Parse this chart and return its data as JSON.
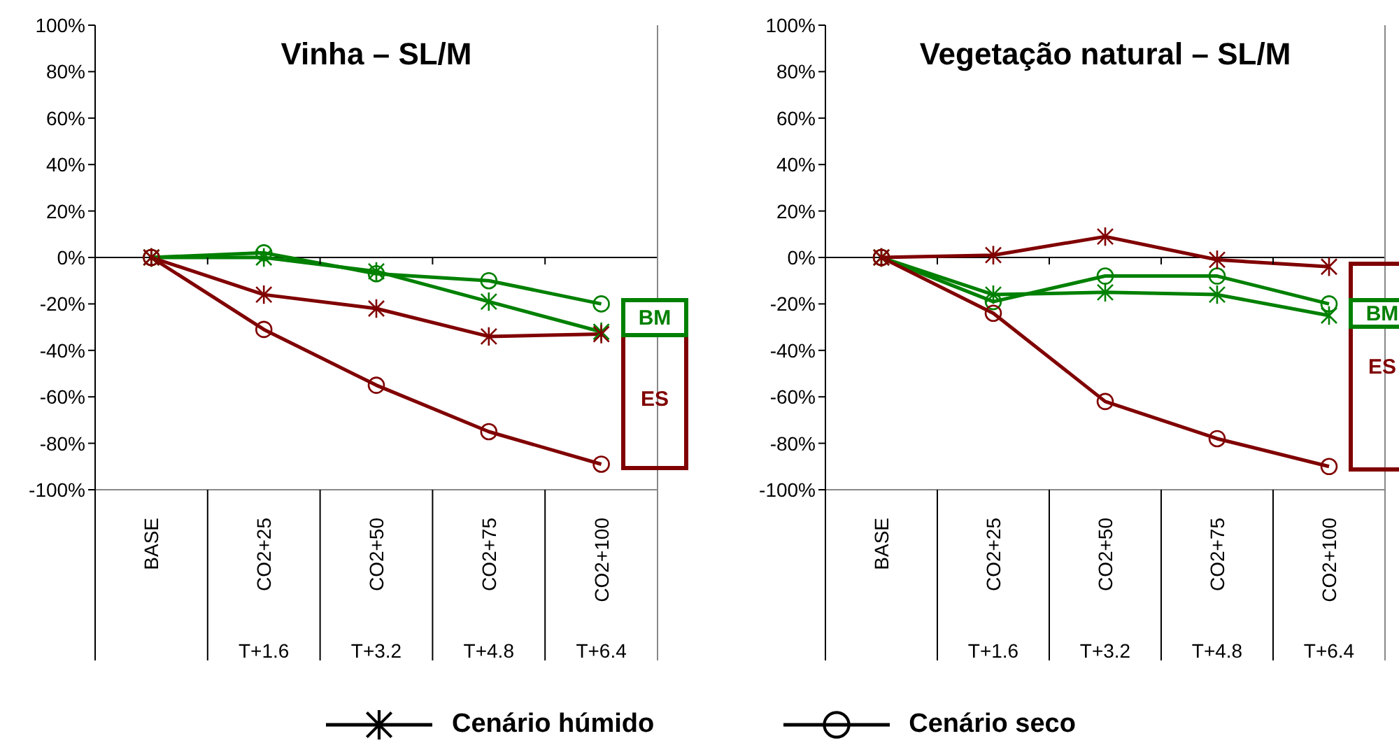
{
  "chart_data": [
    {
      "type": "line",
      "title": "Vinha – SL/M",
      "categories": [
        "BASE",
        "CO2+25",
        "CO2+50",
        "CO2+75",
        "CO2+100"
      ],
      "ylim": [
        -100,
        100
      ],
      "yticks": [
        {
          "value": -100,
          "label": "-100%"
        },
        {
          "value": -80,
          "label": "-80%"
        },
        {
          "value": -60,
          "label": "-60%"
        },
        {
          "value": -40,
          "label": "-40%"
        },
        {
          "value": -20,
          "label": "-20%"
        },
        {
          "value": 0,
          "label": "0%"
        },
        {
          "value": 20,
          "label": "20%"
        },
        {
          "value": 40,
          "label": "40%"
        },
        {
          "value": 60,
          "label": "60%"
        },
        {
          "value": 80,
          "label": "80%"
        },
        {
          "value": 100,
          "label": "100%"
        }
      ],
      "ref_lines": [
        {
          "axis": "y",
          "value": 0,
          "color": "#000000"
        }
      ],
      "annotations": [
        "BM",
        "ES",
        "T+1.6",
        "T+3.2",
        "T+4.8",
        "T+6.4",
        "Cenário húmido",
        "Cenário seco"
      ],
      "series": [
        {
          "color": "#008000",
          "marker": "cross",
          "values": [
            0,
            0,
            -6,
            -19,
            -32
          ]
        },
        {
          "color": "#008000",
          "marker": "circle",
          "values": [
            0,
            2,
            -7,
            -10,
            -20
          ]
        },
        {
          "color": "#800000",
          "marker": "cross",
          "values": [
            0,
            -16,
            -22,
            -34,
            -33
          ]
        },
        {
          "color": "#800000",
          "marker": "circle",
          "values": [
            0,
            -31,
            -55,
            -75,
            -89
          ]
        }
      ]
    },
    {
      "type": "line",
      "title": "Vegetação natural – SL/M",
      "categories": [
        "BASE",
        "CO2+25",
        "CO2+50",
        "CO2+75",
        "CO2+100"
      ],
      "ylim": [
        -100,
        100
      ],
      "yticks": [
        {
          "value": -100,
          "label": "-100%"
        },
        {
          "value": -80,
          "label": "-80%"
        },
        {
          "value": -60,
          "label": "-60%"
        },
        {
          "value": -40,
          "label": "-40%"
        },
        {
          "value": -20,
          "label": "-20%"
        },
        {
          "value": 0,
          "label": "0%"
        },
        {
          "value": 20,
          "label": "20%"
        },
        {
          "value": 40,
          "label": "40%"
        },
        {
          "value": 60,
          "label": "60%"
        },
        {
          "value": 80,
          "label": "80%"
        },
        {
          "value": 100,
          "label": "100%"
        }
      ],
      "ref_lines": [
        {
          "axis": "y",
          "value": 0,
          "color": "#000000"
        }
      ],
      "annotations": [
        "BM",
        "ES",
        "T+1.6",
        "T+3.2",
        "T+4.8",
        "T+6.4"
      ],
      "series": [
        {
          "color": "#008000",
          "marker": "cross",
          "values": [
            0,
            -16,
            -15,
            -16,
            -25
          ]
        },
        {
          "color": "#008000",
          "marker": "circle",
          "values": [
            0,
            -19,
            -8,
            -8,
            -20
          ]
        },
        {
          "color": "#800000",
          "marker": "cross",
          "values": [
            0,
            1,
            9,
            -1,
            -4
          ]
        },
        {
          "color": "#800000",
          "marker": "circle",
          "values": [
            0,
            -24,
            -62,
            -78,
            -90
          ]
        }
      ]
    }
  ]
}
